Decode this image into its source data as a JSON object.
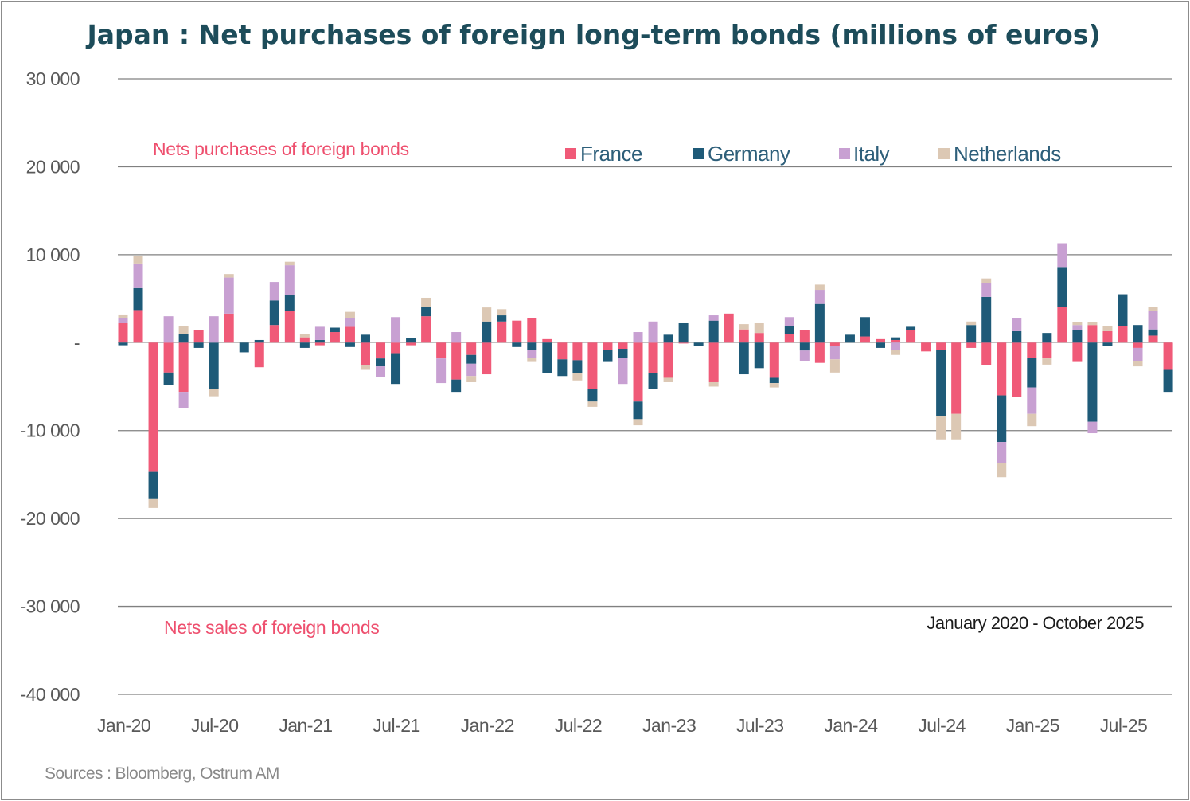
{
  "chart_data": {
    "type": "bar",
    "stacked": true,
    "title": "Japan : Net purchases of foreign long-term bonds (millions of euros)",
    "period_note": "January 2020 - October 2025",
    "annotations": {
      "purchases": "Nets purchases of foreign bonds",
      "sales": "Nets sales of foreign bonds"
    },
    "source": "Sources : Bloomberg, Ostrum AM",
    "ylim": [
      -40000,
      30000
    ],
    "yticks": [
      30000,
      20000,
      10000,
      0,
      -10000,
      -20000,
      -30000,
      -40000
    ],
    "ytick_labels": [
      "30 000",
      "20 000",
      "10 000",
      "-",
      "-10 000",
      "-20 000",
      "-30 000",
      "-40 000"
    ],
    "xtick_labels": [
      "Jan-20",
      "Jul-20",
      "Jan-21",
      "Jul-21",
      "Jan-22",
      "Jul-22",
      "Jan-23",
      "Jul-23",
      "Jan-24",
      "Jul-24",
      "Jan-25",
      "Jul-25"
    ],
    "xtick_every": 6,
    "legend_position": "top-right",
    "grid": true,
    "categories_count": 70,
    "first_category": "Jan-20",
    "series": [
      {
        "name": "France",
        "color": "#f05a78",
        "values": [
          2200,
          3700,
          -14700,
          -3400,
          -5600,
          1400,
          0,
          3300,
          0,
          -2800,
          2000,
          3600,
          600,
          -300,
          1200,
          1800,
          -2600,
          -1800,
          -1200,
          -300,
          3000,
          -1800,
          -4200,
          -1400,
          -3600,
          2400,
          2500,
          2800,
          400,
          -1900,
          -2000,
          -5300,
          -800,
          -700,
          -6700,
          -3500,
          -4000,
          -100,
          0,
          -4500,
          3300,
          1500,
          1100,
          -4000,
          1000,
          1400,
          -2300,
          -400,
          0,
          700,
          400,
          300,
          1400,
          -1000,
          -800,
          -8100,
          -600,
          -2600,
          -6000,
          -6200,
          -1700,
          -1800,
          4100,
          -2200,
          2000,
          1300,
          1900,
          -600,
          800,
          -3100
        ]
      },
      {
        "name": "Germany",
        "color": "#1e5a78",
        "values": [
          -300,
          2500,
          -3100,
          -1400,
          1000,
          -600,
          -5300,
          0,
          -1100,
          300,
          2800,
          1800,
          -600,
          300,
          500,
          -500,
          900,
          -900,
          -3500,
          500,
          1100,
          0,
          -1400,
          -1000,
          2400,
          700,
          -500,
          -800,
          -3500,
          -1900,
          -1500,
          -1400,
          -1400,
          -1000,
          -2000,
          -1800,
          900,
          2200,
          -400,
          2500,
          0,
          -3600,
          -2900,
          -600,
          900,
          -900,
          4400,
          0,
          900,
          2200,
          -600,
          300,
          400,
          0,
          -7600,
          0,
          2000,
          5200,
          -5300,
          1300,
          -3400,
          1100,
          4500,
          1400,
          -9000,
          -400,
          3600,
          2000,
          700,
          -2500
        ]
      },
      {
        "name": "Italy",
        "color": "#c8a0d2",
        "values": [
          600,
          2800,
          0,
          3000,
          -1800,
          0,
          3000,
          4100,
          0,
          0,
          2100,
          3400,
          0,
          1500,
          0,
          1000,
          0,
          -1200,
          2900,
          0,
          0,
          -2800,
          1200,
          -1400,
          0,
          0,
          0,
          -900,
          0,
          0,
          0,
          0,
          0,
          -3000,
          1200,
          2400,
          0,
          0,
          0,
          600,
          0,
          0,
          0,
          0,
          1000,
          -1200,
          1600,
          -1500,
          0,
          0,
          0,
          -800,
          0,
          0,
          0,
          0,
          0,
          1600,
          -2400,
          1500,
          -3000,
          0,
          2700,
          600,
          -1300,
          0,
          0,
          -1500,
          2100,
          0
        ]
      },
      {
        "name": "Netherlands",
        "color": "#dcc8b4",
        "values": [
          400,
          900,
          -1000,
          0,
          900,
          0,
          -800,
          400,
          0,
          0,
          0,
          400,
          400,
          0,
          0,
          700,
          -500,
          0,
          0,
          0,
          1000,
          0,
          0,
          -700,
          1600,
          700,
          0,
          -500,
          0,
          0,
          -800,
          -600,
          0,
          0,
          -700,
          0,
          -500,
          0,
          0,
          -500,
          0,
          600,
          1100,
          -500,
          0,
          0,
          600,
          -1500,
          0,
          0,
          0,
          -600,
          0,
          0,
          -2600,
          -2900,
          400,
          500,
          -1600,
          0,
          -1400,
          -700,
          0,
          300,
          300,
          600,
          0,
          -600,
          500,
          0
        ]
      }
    ]
  }
}
